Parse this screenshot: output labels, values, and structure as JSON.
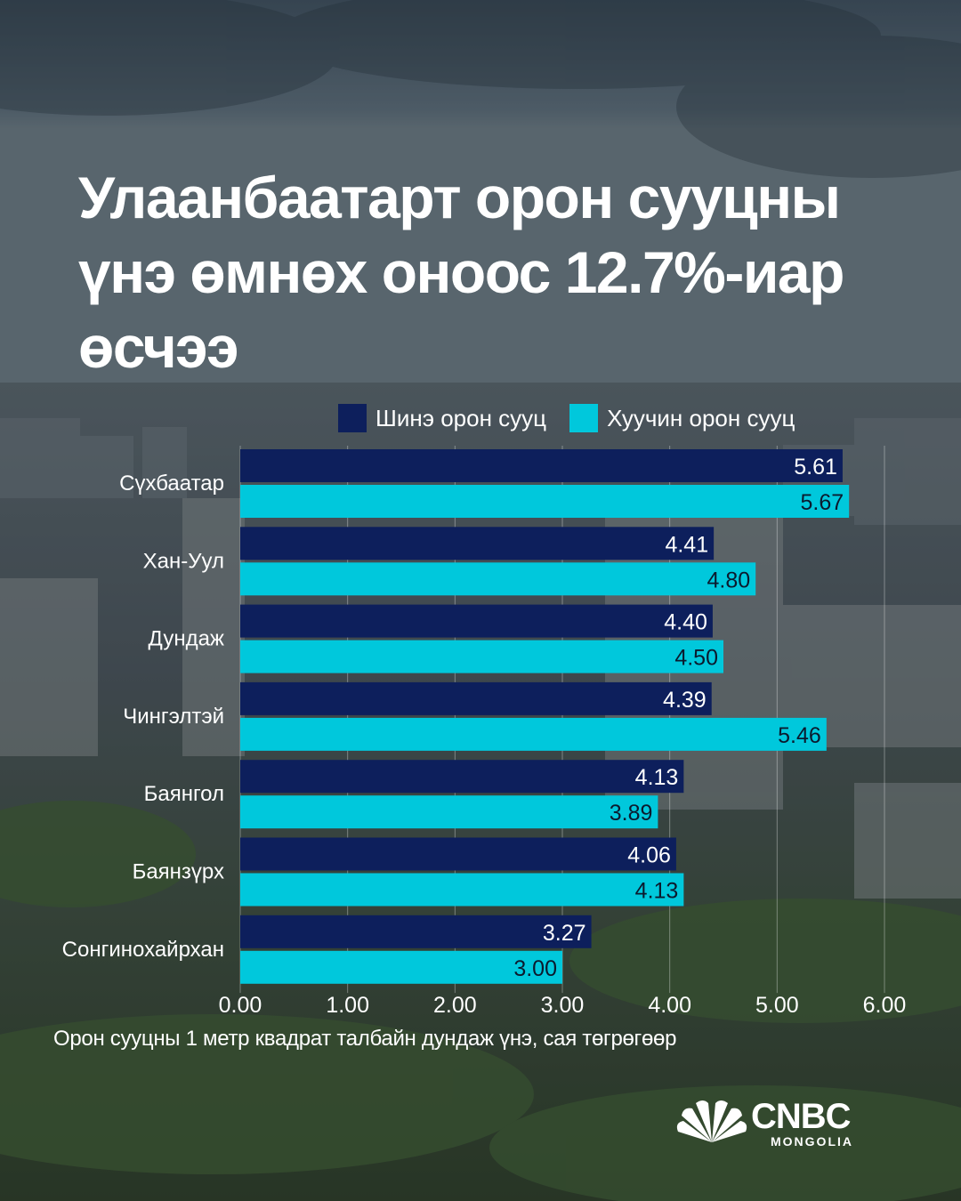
{
  "title": "Улаанбаатарт орон сууцны үнэ өмнөх оноос 12.7%-иар өсчээ",
  "caption": "Орон сууцны 1 метр квадрат талбайн дундаж үнэ, сая төгрөгөөр",
  "logo": {
    "text": "CNBC",
    "subtext": "MONGOLIA",
    "icon": "peacock-icon"
  },
  "colors": {
    "new": "#0d1f5c",
    "old": "#00c8dc",
    "text": "#ffffff"
  },
  "chart_data": {
    "type": "bar",
    "orientation": "horizontal",
    "categories": [
      "Сүхбаатар",
      "Хан-Уул",
      "Дундаж",
      "Чингэлтэй",
      "Баянгол",
      "Баянзүрх",
      "Сонгинохайрхан"
    ],
    "series": [
      {
        "name": "Шинэ орон сууц",
        "values": [
          5.61,
          4.41,
          4.4,
          4.39,
          4.13,
          4.06,
          3.27
        ],
        "labels": [
          "5.61",
          "4.41",
          "4.40",
          "4.39",
          "4.13",
          "4.06",
          "3.27"
        ]
      },
      {
        "name": "Хуучин орон сууц",
        "values": [
          5.67,
          4.8,
          4.5,
          5.46,
          3.89,
          4.13,
          3.0
        ],
        "labels": [
          "5.67",
          "4.80",
          "4.50",
          "5.46",
          "3.89",
          "4.13",
          "3.00"
        ]
      }
    ],
    "xlim": [
      0,
      6
    ],
    "xticks": [
      "0.00",
      "1.00",
      "2.00",
      "3.00",
      "4.00",
      "5.00",
      "6.00"
    ],
    "grid": true,
    "legend_position": "top"
  }
}
